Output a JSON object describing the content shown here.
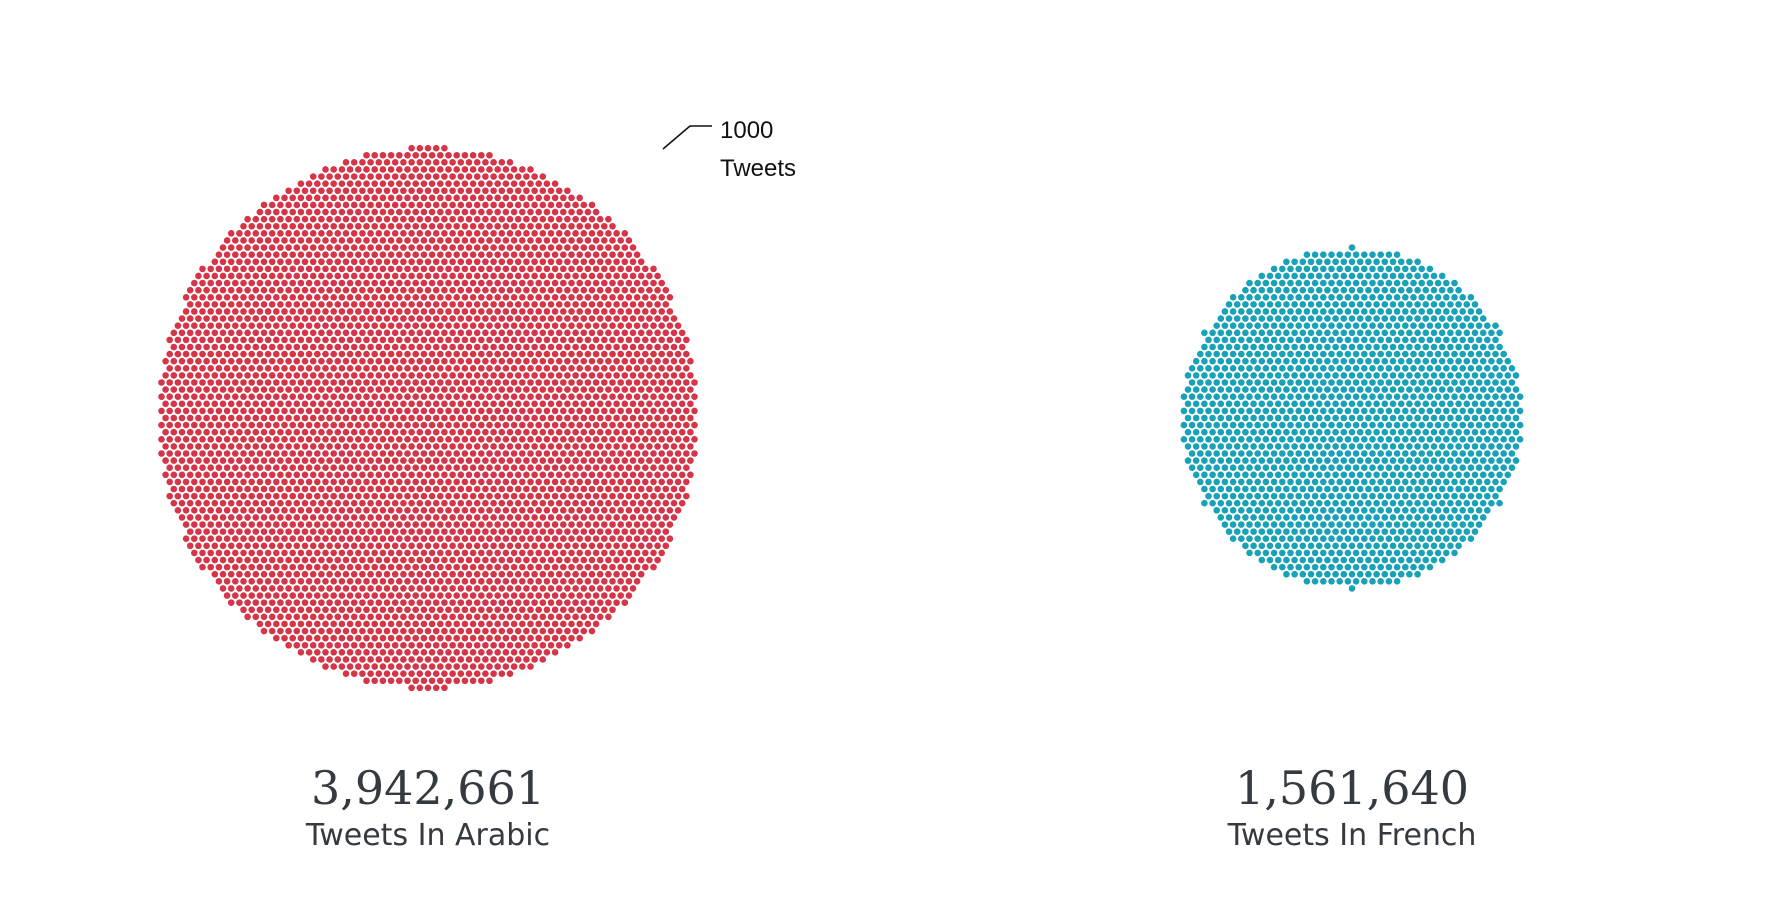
{
  "chart_data": {
    "type": "unit-dot",
    "unit_value": 1000,
    "series": [
      {
        "total_text": "3,942,661",
        "value": 3942661,
        "label": "Tweets In Arabic",
        "color": "#d63447"
      },
      {
        "total_text": "1,561,640",
        "value": 1561640,
        "label": "Tweets In French",
        "color": "#17a2b8"
      }
    ],
    "annotation": {
      "value_text": "1000",
      "unit_text": "Tweets"
    }
  }
}
